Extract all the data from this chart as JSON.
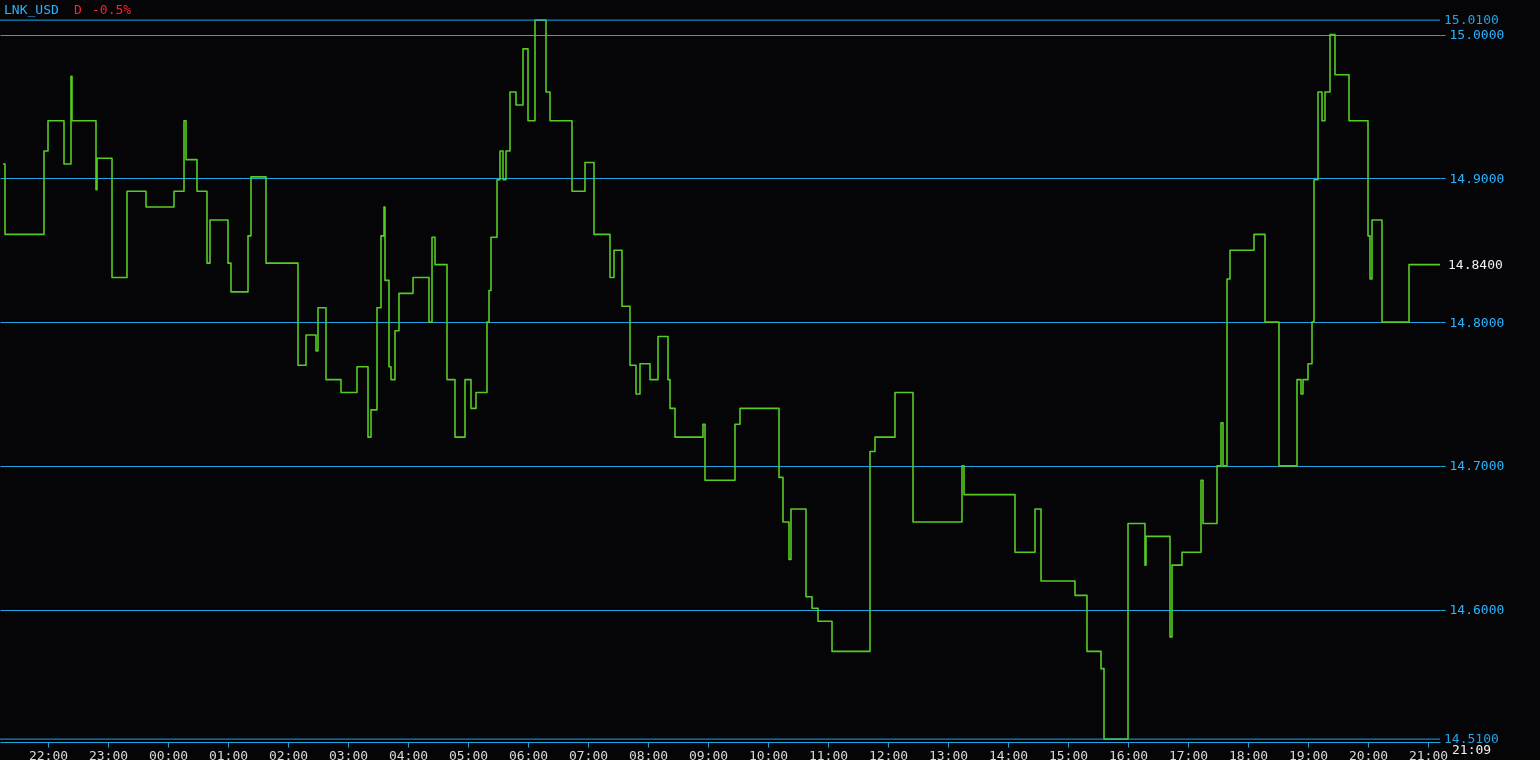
{
  "chart_data": {
    "type": "step",
    "title": "LNK_USD",
    "annotations": [
      "D",
      "-0.5%",
      "21:09",
      {
        "text": "14.8400",
        "x": "--01-02T21:12",
        "y": 14.84
      }
    ],
    "xlim": [
      "--01-01T21:12",
      "--01-02T21:12"
    ],
    "xticks": [
      {
        "value": "--01-01T22:00",
        "label": "22:00"
      },
      {
        "value": "--01-01T23:00",
        "label": "23:00"
      },
      {
        "value": "--01-02T00:00",
        "label": "00:00"
      },
      {
        "value": "--01-02T01:00",
        "label": "01:00"
      },
      {
        "value": "--01-02T02:00",
        "label": "02:00"
      },
      {
        "value": "--01-02T03:00",
        "label": "03:00"
      },
      {
        "value": "--01-02T04:00",
        "label": "04:00"
      },
      {
        "value": "--01-02T05:00",
        "label": "05:00"
      },
      {
        "value": "--01-02T06:00",
        "label": "06:00"
      },
      {
        "value": "--01-02T07:00",
        "label": "07:00"
      },
      {
        "value": "--01-02T08:00",
        "label": "08:00"
      },
      {
        "value": "--01-02T09:00",
        "label": "09:00"
      },
      {
        "value": "--01-02T10:00",
        "label": "10:00"
      },
      {
        "value": "--01-02T11:00",
        "label": "11:00"
      },
      {
        "value": "--01-02T12:00",
        "label": "12:00"
      },
      {
        "value": "--01-02T13:00",
        "label": "13:00"
      },
      {
        "value": "--01-02T14:00",
        "label": "14:00"
      },
      {
        "value": "--01-02T15:00",
        "label": "15:00"
      },
      {
        "value": "--01-02T16:00",
        "label": "16:00"
      },
      {
        "value": "--01-02T17:00",
        "label": "17:00"
      },
      {
        "value": "--01-02T18:00",
        "label": "18:00"
      },
      {
        "value": "--01-02T19:00",
        "label": "19:00"
      },
      {
        "value": "--01-02T20:00",
        "label": "20:00"
      },
      {
        "value": "--01-02T21:00",
        "label": "21:00"
      }
    ],
    "ylim": [
      14.508,
      15.024
    ],
    "yticks": [
      {
        "value": 14.6,
        "label": "14.6000"
      },
      {
        "value": 14.7,
        "label": "14.7000"
      },
      {
        "value": 14.8,
        "label": "14.8000"
      },
      {
        "value": 14.9,
        "label": "14.9000"
      },
      {
        "value": 15,
        "label": "15.0000"
      }
    ],
    "grid": "y",
    "ref_lines": [
      {
        "axis": "y",
        "value": 15.01,
        "label": "15.0100",
        "color": "#1fa5e6"
      },
      {
        "axis": "y",
        "value": 14.51,
        "label": "14.5100",
        "color": "#1fa5e6"
      }
    ],
    "series": [
      {
        "color": "#55cc22",
        "x": [
          "--01-01T21:15",
          "--01-01T21:17",
          "--01-01T21:54",
          "--01-01T21:56",
          "--01-01T22:00",
          "--01-01T22:16",
          "--01-01T22:16",
          "--01-01T22:21",
          "--01-01T22:23",
          "--01-01T22:24",
          "--01-01T22:47",
          "--01-01T22:48",
          "--01-01T22:49",
          "--01-01T23:02",
          "--01-01T23:04",
          "--01-01T23:17",
          "--01-01T23:19",
          "--01-01T23:35",
          "--01-01T23:38",
          "--01-02T00:04",
          "--01-02T00:06",
          "--01-02T00:14",
          "--01-02T00:16",
          "--01-02T00:18",
          "--01-02T00:27",
          "--01-02T00:29",
          "--01-02T00:37",
          "--01-02T00:39",
          "--01-02T00:42",
          "--01-02T00:58",
          "--01-02T01:00",
          "--01-02T01:03",
          "--01-02T01:17",
          "--01-02T01:20",
          "--01-02T01:23",
          "--01-02T01:35",
          "--01-02T01:38",
          "--01-02T02:05",
          "--01-02T02:10",
          "--01-02T02:16",
          "--01-02T02:18",
          "--01-02T02:25",
          "--01-02T02:28",
          "--01-02T02:30",
          "--01-02T02:35",
          "--01-02T02:38",
          "--01-02T02:50",
          "--01-02T02:53",
          "--01-02T03:07",
          "--01-02T03:09",
          "--01-02T03:16",
          "--01-02T03:20",
          "--01-02T03:23",
          "--01-02T03:29",
          "--01-02T03:33",
          "--01-02T03:36",
          "--01-02T03:37",
          "--01-02T03:41",
          "--01-02T03:43",
          "--01-02T03:47",
          "--01-02T03:51",
          "--01-02T04:02",
          "--01-02T04:05",
          "--01-02T04:17",
          "--01-02T04:21",
          "--01-02T04:24",
          "--01-02T04:27",
          "--01-02T04:32",
          "--01-02T04:39",
          "--01-02T04:45",
          "--01-02T04:47",
          "--01-02T04:55",
          "--01-02T04:57",
          "--01-02T05:01",
          "--01-02T05:03",
          "--01-02T05:08",
          "--01-02T05:14",
          "--01-02T05:19",
          "--01-02T05:21",
          "--01-02T05:23",
          "--01-02T05:29",
          "--01-02T05:32",
          "--01-02T05:35",
          "--01-02T05:38",
          "--01-02T05:42",
          "--01-02T05:46",
          "--01-02T05:48",
          "--01-02T05:53",
          "--01-02T05:55",
          "--01-02T05:59",
          "--01-02T06:00",
          "--01-02T06:05",
          "--01-02T06:07",
          "--01-02T06:16",
          "--01-02T06:18",
          "--01-02T06:22",
          "--01-02T06:42",
          "--01-02T06:44",
          "--01-02T06:54",
          "--01-02T06:57",
          "--01-02T07:04",
          "--01-02T07:06",
          "--01-02T07:19",
          "--01-02T07:22",
          "--01-02T07:26",
          "--01-02T07:32",
          "--01-02T07:34",
          "--01-02T07:42",
          "--01-02T07:48",
          "--01-02T07:52",
          "--01-02T08:00",
          "--01-02T08:02",
          "--01-02T08:06",
          "--01-02T08:10",
          "--01-02T08:16",
          "--01-02T08:20",
          "--01-02T08:22",
          "--01-02T08:27",
          "--01-02T08:49",
          "--01-02T08:55",
          "--01-02T08:57",
          "--01-02T09:25",
          "--01-02T09:27",
          "--01-02T09:32",
          "--01-02T10:09",
          "--01-02T10:11",
          "--01-02T10:15",
          "--01-02T10:21",
          "--01-02T10:23",
          "--01-02T10:35",
          "--01-02T10:38",
          "--01-02T10:44",
          "--01-02T10:50",
          "--01-02T11:02",
          "--01-02T11:04",
          "--01-02T11:38",
          "--01-02T11:42",
          "--01-02T11:47",
          "--01-02T12:05",
          "--01-02T12:07",
          "--01-02T12:23",
          "--01-02T12:25",
          "--01-02T13:10",
          "--01-02T13:14",
          "--01-02T13:16",
          "--01-02T14:03",
          "--01-02T14:07",
          "--01-02T14:23",
          "--01-02T14:27",
          "--01-02T14:33",
          "--01-02T15:04",
          "--01-02T15:07",
          "--01-02T15:15",
          "--01-02T15:19",
          "--01-02T15:30",
          "--01-02T15:33",
          "--01-02T15:36",
          "--01-02T15:56",
          "--01-02T16:00",
          "--01-02T16:14",
          "--01-02T16:17",
          "--01-02T16:18",
          "--01-02T16:40",
          "--01-02T16:42",
          "--01-02T16:44",
          "--01-02T16:50",
          "--01-02T16:54",
          "--01-02T17:10",
          "--01-02T17:13",
          "--01-02T17:15",
          "--01-02T17:27",
          "--01-02T17:29",
          "--01-02T17:33",
          "--01-02T17:35",
          "--01-02T17:39",
          "--01-02T17:42",
          "--01-02T18:04",
          "--01-02T18:06",
          "--01-02T18:14",
          "--01-02T18:17",
          "--01-02T18:29",
          "--01-02T18:31",
          "--01-02T18:47",
          "--01-02T18:49",
          "--01-02T18:53",
          "--01-02T18:55",
          "--01-02T19:00",
          "--01-02T19:04",
          "--01-02T19:06",
          "--01-02T19:10",
          "--01-02T19:14",
          "--01-02T19:17",
          "--01-02T19:22",
          "--01-02T19:27",
          "--01-02T19:38",
          "--01-02T19:41",
          "--01-02T19:58",
          "--01-02T20:00",
          "--01-02T20:02",
          "--01-02T20:04",
          "--01-02T20:10",
          "--01-02T20:14",
          "--01-02T20:39",
          "--01-02T20:41",
          "--01-02T21:12"
        ],
        "values": [
          14.91,
          14.861,
          14.861,
          14.919,
          14.94,
          14.94,
          14.91,
          14.91,
          14.971,
          14.94,
          14.94,
          14.892,
          14.914,
          14.914,
          14.831,
          14.831,
          14.891,
          14.891,
          14.88,
          14.88,
          14.891,
          14.891,
          14.94,
          14.913,
          14.913,
          14.891,
          14.891,
          14.841,
          14.871,
          14.871,
          14.841,
          14.821,
          14.821,
          14.86,
          14.901,
          14.901,
          14.841,
          14.841,
          14.77,
          14.77,
          14.791,
          14.791,
          14.78,
          14.81,
          14.81,
          14.76,
          14.76,
          14.751,
          14.751,
          14.769,
          14.769,
          14.72,
          14.739,
          14.81,
          14.86,
          14.88,
          14.829,
          14.769,
          14.76,
          14.794,
          14.82,
          14.82,
          14.831,
          14.831,
          14.8,
          14.859,
          14.84,
          14.84,
          14.76,
          14.76,
          14.72,
          14.72,
          14.76,
          14.76,
          14.74,
          14.751,
          14.751,
          14.8,
          14.822,
          14.859,
          14.899,
          14.919,
          14.899,
          14.919,
          14.96,
          14.96,
          14.951,
          14.951,
          14.99,
          14.99,
          14.94,
          14.94,
          15.01,
          15.01,
          14.96,
          14.94,
          14.94,
          14.891,
          14.891,
          14.911,
          14.911,
          14.861,
          14.861,
          14.831,
          14.85,
          14.85,
          14.811,
          14.77,
          14.75,
          14.771,
          14.771,
          14.76,
          14.76,
          14.79,
          14.79,
          14.76,
          14.74,
          14.72,
          14.72,
          14.729,
          14.69,
          14.69,
          14.729,
          14.74,
          14.74,
          14.692,
          14.661,
          14.635,
          14.67,
          14.67,
          14.609,
          14.601,
          14.592,
          14.592,
          14.571,
          14.571,
          14.71,
          14.72,
          14.72,
          14.751,
          14.751,
          14.661,
          14.661,
          14.7,
          14.68,
          14.68,
          14.64,
          14.64,
          14.67,
          14.62,
          14.62,
          14.61,
          14.61,
          14.571,
          14.571,
          14.559,
          14.51,
          14.51,
          14.66,
          14.66,
          14.631,
          14.651,
          14.651,
          14.581,
          14.631,
          14.631,
          14.64,
          14.64,
          14.69,
          14.66,
          14.66,
          14.7,
          14.73,
          14.7,
          14.83,
          14.85,
          14.85,
          14.861,
          14.861,
          14.8,
          14.8,
          14.7,
          14.7,
          14.76,
          14.75,
          14.76,
          14.771,
          14.8,
          14.899,
          14.96,
          14.94,
          14.96,
          15.0,
          14.972,
          14.972,
          14.94,
          14.94,
          14.86,
          14.83,
          14.871,
          14.871,
          14.8,
          14.8,
          14.84,
          14.84
        ]
      }
    ]
  }
}
